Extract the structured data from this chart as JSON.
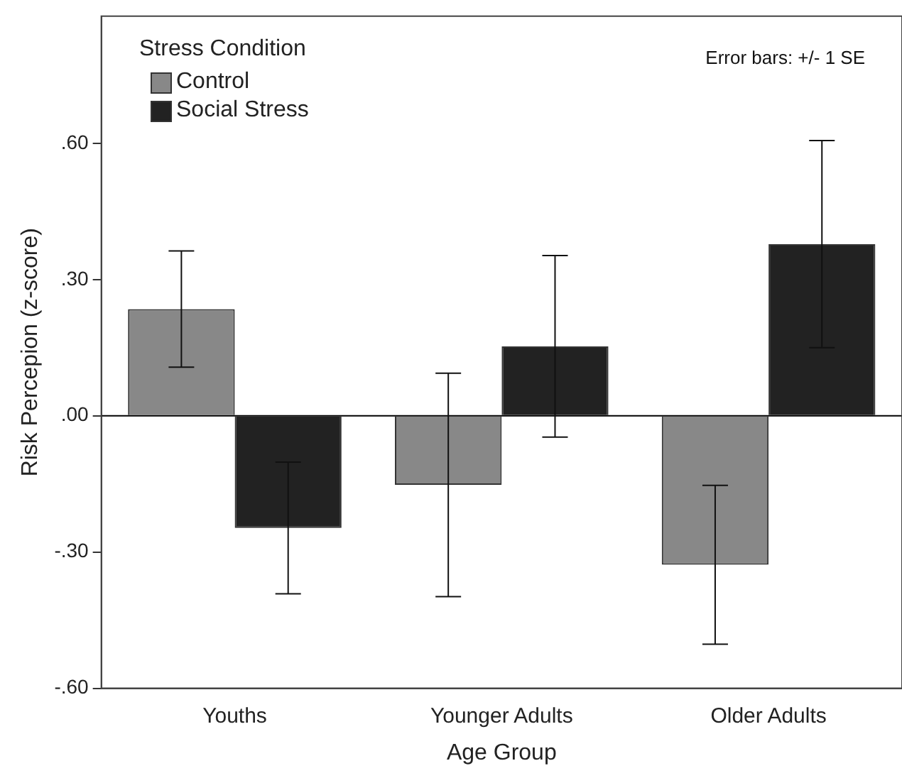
{
  "chart_data": {
    "type": "bar",
    "xlabel": "Age Group",
    "ylabel": "Risk Percepion (z-score)",
    "legend_title": "Stress Condition",
    "annotations": [
      "Error bars: +/- 1 SE"
    ],
    "categories": [
      "Youths",
      "Younger Adults",
      "Older Adults"
    ],
    "series": [
      {
        "name": "Control",
        "color": "#888888",
        "values": [
          0.235,
          -0.152,
          -0.328
        ],
        "errors": [
          0.128,
          0.246,
          0.175
        ]
      },
      {
        "name": "Social Stress",
        "color": "#222222",
        "values": [
          -0.247,
          0.153,
          0.378
        ],
        "errors": [
          0.145,
          0.2,
          0.228
        ]
      }
    ],
    "ylim": [
      -0.6,
      0.88
    ],
    "yticks": [
      {
        "value": -0.6,
        "label": "-.60"
      },
      {
        "value": -0.3,
        "label": "-.30"
      },
      {
        "value": 0,
        "label": ".00"
      },
      {
        "value": 0.3,
        "label": ".30"
      },
      {
        "value": 0.6,
        "label": ".60"
      }
    ],
    "ref_lines": [
      {
        "axis": "y",
        "value": 0,
        "color": "#000000"
      }
    ],
    "grid": false,
    "legend": "top left"
  }
}
